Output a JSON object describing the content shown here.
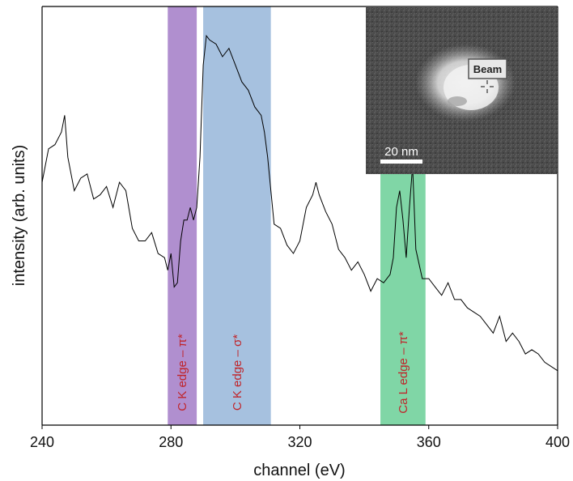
{
  "chart_data": {
    "type": "line",
    "xlabel": "channel (eV)",
    "ylabel": "intensity (arb. units)",
    "xlim": [
      240,
      400
    ],
    "xticks": [
      240,
      280,
      320,
      360,
      400
    ],
    "yticks_shown": false,
    "grid": false,
    "legend": "none",
    "series": [
      {
        "color": "#000000",
        "x": [
          240,
          242,
          244,
          246,
          247,
          248,
          250,
          252,
          254,
          256,
          258,
          260,
          262,
          264,
          266,
          268,
          270,
          272,
          274,
          276,
          278,
          279,
          280,
          281,
          282,
          283,
          284,
          285,
          286,
          287,
          288,
          289,
          290,
          291,
          292,
          294,
          296,
          298,
          300,
          302,
          304,
          306,
          308,
          309,
          310,
          311,
          312,
          314,
          316,
          318,
          320,
          322,
          324,
          325,
          326,
          328,
          330,
          332,
          334,
          336,
          338,
          340,
          342,
          344,
          346,
          348,
          349,
          350,
          351,
          352,
          353,
          354,
          355,
          356,
          358,
          360,
          362,
          364,
          366,
          368,
          370,
          372,
          374,
          376,
          378,
          380,
          382,
          384,
          386,
          388,
          390,
          392,
          394,
          396,
          398,
          400
        ],
        "y": [
          0.58,
          0.66,
          0.67,
          0.7,
          0.74,
          0.64,
          0.56,
          0.59,
          0.6,
          0.54,
          0.55,
          0.57,
          0.52,
          0.58,
          0.56,
          0.47,
          0.44,
          0.44,
          0.46,
          0.41,
          0.4,
          0.37,
          0.41,
          0.33,
          0.34,
          0.44,
          0.49,
          0.49,
          0.52,
          0.49,
          0.52,
          0.64,
          0.86,
          0.93,
          0.92,
          0.91,
          0.88,
          0.9,
          0.86,
          0.82,
          0.8,
          0.76,
          0.74,
          0.7,
          0.64,
          0.56,
          0.48,
          0.47,
          0.43,
          0.41,
          0.44,
          0.52,
          0.55,
          0.58,
          0.55,
          0.51,
          0.48,
          0.42,
          0.4,
          0.37,
          0.39,
          0.36,
          0.32,
          0.35,
          0.34,
          0.36,
          0.4,
          0.52,
          0.56,
          0.49,
          0.4,
          0.52,
          0.62,
          0.42,
          0.35,
          0.35,
          0.33,
          0.31,
          0.34,
          0.3,
          0.3,
          0.28,
          0.27,
          0.26,
          0.24,
          0.22,
          0.26,
          0.2,
          0.22,
          0.2,
          0.17,
          0.18,
          0.17,
          0.15,
          0.14,
          0.13
        ]
      }
    ],
    "bands": [
      {
        "label": "C K edge – π*",
        "x_start": 279,
        "x_end": 288,
        "color": "#b08fcf"
      },
      {
        "label": "C K edge – σ*",
        "x_start": 290,
        "x_end": 311,
        "color": "#a6c1df"
      },
      {
        "label": "Ca L edge – π*",
        "x_start": 345,
        "x_end": 359,
        "color": "#80d6a6"
      }
    ],
    "inset": {
      "tag_text": "Beam",
      "scale_bar_text": "20 nm"
    }
  }
}
